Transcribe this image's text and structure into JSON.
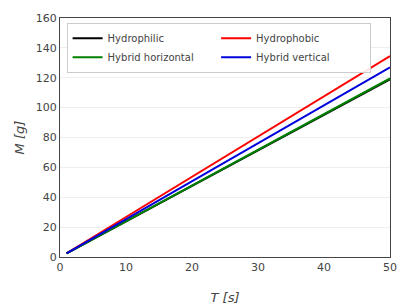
{
  "chart_data": {
    "type": "line",
    "title": "",
    "xlabel": "T [s]",
    "ylabel": "M [g]",
    "xlim": [
      0,
      50
    ],
    "ylim": [
      0,
      160
    ],
    "xticks": [
      0,
      10,
      20,
      30,
      40,
      50
    ],
    "yticks": [
      0,
      20,
      40,
      60,
      80,
      100,
      120,
      140,
      160
    ],
    "series": [
      {
        "name": "Hydrophilic",
        "color": "#000000",
        "x": [
          1,
          50
        ],
        "values": [
          2.5,
          119.0
        ]
      },
      {
        "name": "Hydrophobic",
        "color": "#ff0000",
        "x": [
          1,
          50
        ],
        "values": [
          2.5,
          134.5
        ]
      },
      {
        "name": "Hybrid horizontal",
        "color": "#008000",
        "x": [
          1,
          50
        ],
        "values": [
          2.5,
          119.5
        ]
      },
      {
        "name": "Hybrid vertical",
        "color": "#0000dd",
        "x": [
          1,
          50
        ],
        "values": [
          2.5,
          127.0
        ]
      }
    ],
    "legend": "upper left",
    "grid": true
  }
}
